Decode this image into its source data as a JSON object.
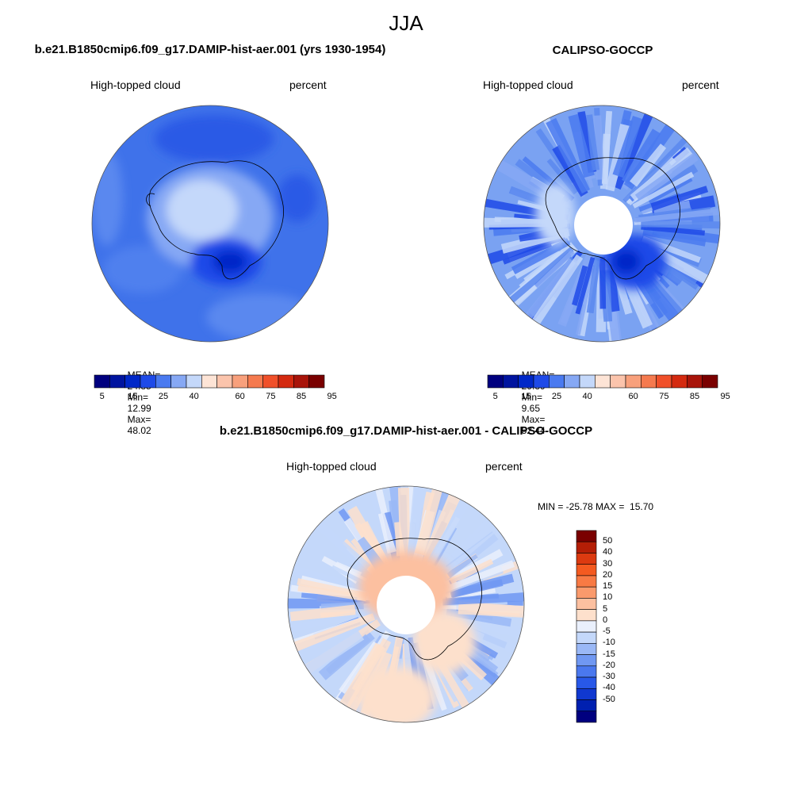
{
  "figure": {
    "season": "JJA",
    "panel_left": {
      "title": "b.e21.B1850cmip6.f09_g17.DAMIP-hist-aer.001 (yrs 1930-1954)",
      "variable": "High-topped cloud",
      "units": "percent",
      "stats": {
        "mean_label": "MEAN=",
        "mean": "24.85",
        "min_label": "Min=",
        "min": "12.99",
        "max_label": "Max=",
        "max": "48.02"
      }
    },
    "panel_right": {
      "title": "CALIPSO-GOCCP",
      "variable": "High-topped cloud",
      "units": "percent",
      "stats": {
        "mean_label": "MEAN=",
        "mean": "29.39",
        "min_label": "Min=",
        "min": "9.65",
        "max_label": "Max=",
        "max": "52.44"
      }
    },
    "panel_diff": {
      "title": "b.e21.B1850cmip6.f09_g17.DAMIP-hist-aer.001 - CALIPSO-GOCCP",
      "variable": "High-topped cloud",
      "units": "percent",
      "minmax": "MIN = -25.78 MAX =  15.70"
    },
    "colorbar_abs": {
      "colors": [
        "#00007f",
        "#00149f",
        "#0028c8",
        "#1e4ae8",
        "#4a7af0",
        "#86a8f4",
        "#c4d8fa",
        "#fde4d6",
        "#fbc4ac",
        "#f8a07c",
        "#f57a4f",
        "#f0502a",
        "#d42a10",
        "#a8140a",
        "#7a0000"
      ],
      "tick_labels": [
        "5",
        "15",
        "25",
        "40",
        "60",
        "75",
        "85",
        "95"
      ]
    },
    "colorbar_diff": {
      "colors": [
        "#7a0000",
        "#b41e06",
        "#dc3a10",
        "#f45a20",
        "#f87a44",
        "#fa9a6c",
        "#fcc0a0",
        "#fde0cc",
        "#eaf0fc",
        "#c4d8fa",
        "#9ab8f6",
        "#7098f2",
        "#4a78ee",
        "#2858e8",
        "#1038d0",
        "#0020b0",
        "#00007f"
      ],
      "tick_labels": [
        "50",
        "40",
        "30",
        "20",
        "15",
        "10",
        "5",
        "0",
        "-5",
        "-10",
        "-15",
        "-20",
        "-30",
        "-40",
        "-50"
      ]
    }
  }
}
